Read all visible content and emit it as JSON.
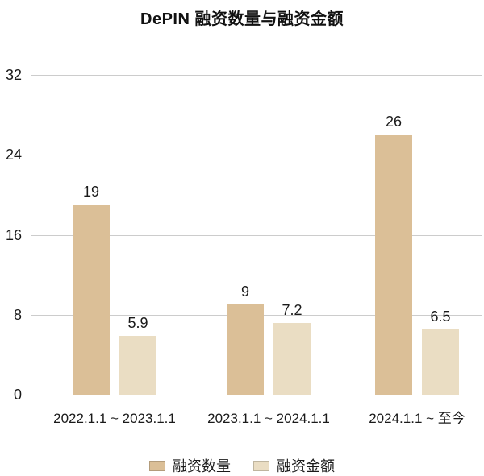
{
  "title": "DePIN 融资数量与融资金额",
  "chart_data": {
    "type": "bar",
    "title": "DePIN 融资数量与融资金额",
    "categories": [
      "2022.1.1 ~ 2023.1.1",
      "2023.1.1 ~ 2024.1.1",
      "2024.1.1 ~ 至今"
    ],
    "series": [
      {
        "key": "count",
        "name": "融资数量",
        "color": "#dbbf97",
        "values": [
          19,
          9,
          26
        ],
        "labels": [
          "19",
          "9",
          "26"
        ]
      },
      {
        "key": "amount",
        "name": "融资金额",
        "color": "#eaddc3",
        "values": [
          5.9,
          7.2,
          6.5
        ],
        "labels": [
          "5.9",
          "7.2",
          "6.5"
        ]
      }
    ],
    "xlabel": "",
    "ylabel": "",
    "yticks": [
      0,
      8,
      16,
      24,
      32
    ],
    "ylim": [
      0,
      32
    ],
    "grid": true,
    "legend_position": "bottom"
  },
  "colors": {
    "background": "#ffffff",
    "grid": "#cccccc",
    "text": "#1a1a1a",
    "title": "#111111"
  }
}
